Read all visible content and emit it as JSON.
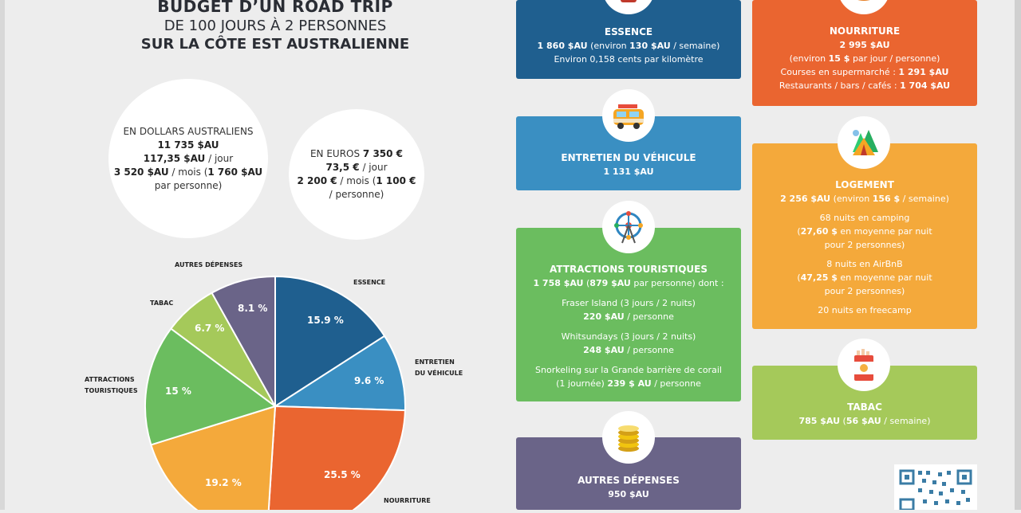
{
  "title": {
    "line1": "BUDGET D’UN ROAD TRIP",
    "line2": "DE 100 JOURS À 2 PERSONNES",
    "line3": "SUR LA CÔTE EST AUSTRALIENNE"
  },
  "aud": {
    "label": "EN DOLLARS AUSTRALIENS",
    "total": "11 735 $AU",
    "per_day_value": "117,35 $AU",
    "per_day_unit": " / jour",
    "per_month_value": "3 520 $AU",
    "per_month_unit": " / mois (",
    "per_person_value": "1 760 $AU",
    "per_person_unit": "par personne)"
  },
  "eur": {
    "label": "EN EUROS ",
    "total": "7 350 €",
    "per_day_value": "73,5 €",
    "per_day_unit": " / jour",
    "per_month_value": "2 200 €",
    "per_month_unit": " / mois (",
    "per_person_value": "1 100 €",
    "per_person_unit": " / personne)"
  },
  "chart_data": {
    "type": "pie",
    "categories": [
      "ESSENCE",
      "ENTRETIEN DU VÉHICULE",
      "NOURRITURE",
      "LOGEMENT",
      "ATTRACTIONS TOURISTIQUES",
      "TABAC",
      "AUTRES DÉPENSES"
    ],
    "values": [
      15.9,
      9.6,
      25.5,
      19.2,
      15,
      6.7,
      8.1
    ],
    "value_labels": [
      "15.9 %",
      "9.6 %",
      "25.5 %",
      "19.2 %",
      "15 %",
      "6.7 %",
      "8.1 %"
    ],
    "colors": [
      "#1f5f8f",
      "#3a8fc2",
      "#ea6530",
      "#f4a93b",
      "#6bbd5f",
      "#a5c95a",
      "#6a6488"
    ],
    "labels_shown": {
      "essence": "ESSENCE",
      "entretien_1": "ENTRETIEN",
      "entretien_2": "DU VÉHICULE",
      "nourriture": "NOURRITURE",
      "attractions_1": "ATTRACTIONS",
      "attractions_2": "TOURISTIQUES",
      "tabac": "TABAC",
      "autres": "AUTRES DÉPENSES"
    }
  },
  "cards": {
    "essence": {
      "title": "ESSENCE",
      "amount": "1 860 $AU",
      "paren_open": " (environ ",
      "weekly": "130 $AU",
      "weekly_unit": " / semaine)",
      "note": "Environ 0,158 cents par kilomètre",
      "icon": "fuel-pump-icon"
    },
    "entretien": {
      "title": "ENTRETIEN DU VÉHICULE",
      "amount": "1 131 $AU",
      "icon": "van-icon"
    },
    "attractions": {
      "title": "ATTRACTIONS TOURISTIQUES",
      "amount": "1 758 $AU",
      "per_person_open": " (",
      "per_person": "879 $AU",
      "per_person_tail": " par personne) dont :",
      "fraser": "Fraser Island (3 jours / 2 nuits)",
      "fraser_price": "220 $AU",
      "whitsundays": "Whitsundays (3 jours / 2 nuits)",
      "whitsundays_price": "248 $AU",
      "snorkeling": "Snorkeling sur la Grande barrière de corail",
      "snorkeling_dur": "(1 journée) ",
      "snorkeling_price": "239 $ AU",
      "per_person_unit": " / personne",
      "icon": "ferris-wheel-icon"
    },
    "autres": {
      "title": "AUTRES DÉPENSES",
      "amount": "950 $AU",
      "icon": "coins-icon"
    },
    "nourriture": {
      "title": "NOURRITURE",
      "amount": "2 995 $AU",
      "paren_open": "(environ ",
      "daily": "15 $",
      "daily_unit": " par jour / personne)",
      "supermarket": "Courses en supermarché : ",
      "supermarket_price": "1 291 $AU",
      "restaurants": "Restaurants / bars / cafés : ",
      "restaurants_price": "1 704 $AU",
      "icon": "food-icon"
    },
    "logement": {
      "title": "LOGEMENT",
      "amount": "2 256 $AU",
      "paren_open": " (environ ",
      "weekly": "156 $",
      "weekly_unit": " / semaine)",
      "camping": "68 nuits en camping",
      "camping_price": "27,60 $",
      "camping_unit": " en moyenne par nuit",
      "camping_note": "pour 2 personnes)",
      "airbnb": "8 nuits en AirBnB",
      "airbnb_price": "47,25 $",
      "airbnb_unit": " en moyenne par nuit",
      "airbnb_note": "pour 2 personnes)",
      "freecamp": "20 nuits en freecamp",
      "icon": "tent-icon"
    },
    "tabac": {
      "title": "TABAC",
      "amount": "785 $AU",
      "weekly_open": " (",
      "weekly": "56 $AU",
      "weekly_unit": " / semaine)",
      "icon": "cigarette-pack-icon"
    }
  }
}
